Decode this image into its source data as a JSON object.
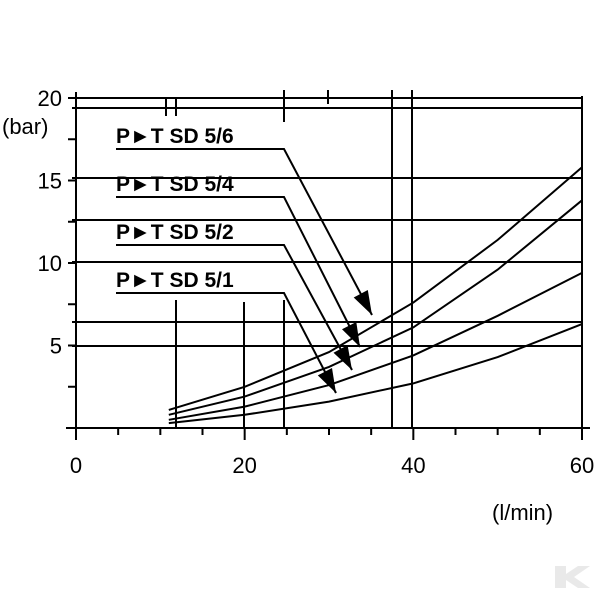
{
  "chart_data": {
    "type": "line",
    "xlabel": "(l/min)",
    "ylabel": "(bar)",
    "xlim": [
      0,
      60
    ],
    "ylim": [
      0,
      20
    ],
    "x_ticks": [
      "0",
      "20",
      "40",
      "60"
    ],
    "y_ticks": [
      "5",
      "10",
      "15",
      "20"
    ],
    "grid": true,
    "series": [
      {
        "name": "P►T SD 5/6",
        "x": [
          11,
          20,
          30,
          40,
          50,
          60
        ],
        "y": [
          1.1,
          2.5,
          4.6,
          7.6,
          11.4,
          15.8
        ]
      },
      {
        "name": "P►T SD 5/4",
        "x": [
          11,
          20,
          30,
          40,
          50,
          60
        ],
        "y": [
          0.8,
          1.9,
          3.7,
          6.1,
          9.6,
          13.8
        ]
      },
      {
        "name": "P►T SD 5/2",
        "x": [
          11,
          20,
          30,
          40,
          50,
          60
        ],
        "y": [
          0.5,
          1.3,
          2.6,
          4.4,
          6.8,
          9.4
        ]
      },
      {
        "name": "P►T SD 5/1",
        "x": [
          11,
          20,
          30,
          40,
          50,
          60
        ],
        "y": [
          0.3,
          0.8,
          1.6,
          2.7,
          4.3,
          6.3
        ]
      }
    ]
  }
}
